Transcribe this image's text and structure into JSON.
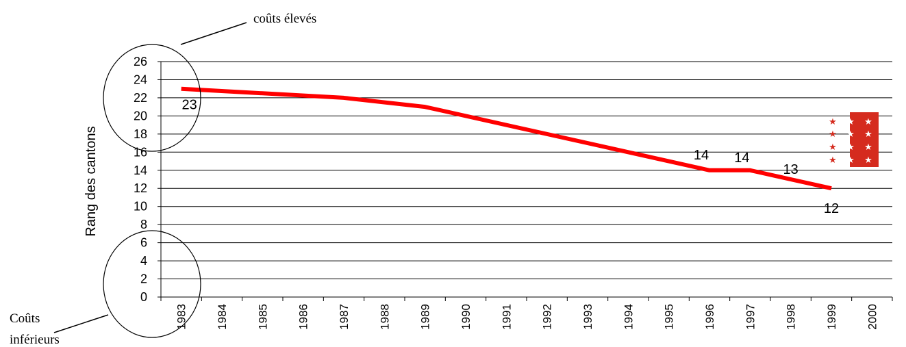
{
  "chart_data": {
    "type": "line",
    "ylabel": "Rang des cantons",
    "xlabel": "",
    "ylim": [
      0,
      26
    ],
    "y_ticks": [
      "0",
      "2",
      "4",
      "6",
      "8",
      "10",
      "12",
      "14",
      "16",
      "18",
      "20",
      "22",
      "24",
      "26"
    ],
    "categories": [
      "1983",
      "1984",
      "1985",
      "1986",
      "1987",
      "1988",
      "1989",
      "1990",
      "1991",
      "1992",
      "1993",
      "1994",
      "1995",
      "1996",
      "1997",
      "1998",
      "1999",
      "2000"
    ],
    "series": [
      {
        "x": [
          "1983",
          "1987",
          "1989",
          "1996",
          "1997",
          "1999"
        ],
        "values": [
          23,
          22,
          21,
          14,
          14,
          12
        ],
        "color": "#ff0000"
      }
    ],
    "data_labels": [
      {
        "x": "1983",
        "text": "23"
      },
      {
        "x": "1996",
        "text": "14"
      },
      {
        "x": "1997",
        "text": "14"
      },
      {
        "x": "1998",
        "text": "13"
      },
      {
        "x": "1999",
        "text": "12"
      }
    ],
    "grid": true,
    "annotations": {
      "top": "coûts élevés",
      "bottom_line1": "Coûts",
      "bottom_line2": "inférieurs"
    },
    "flag_icon": "valais-flag-icon",
    "flag_colors": {
      "red": "#d52b1e",
      "white": "#ffffff"
    }
  }
}
